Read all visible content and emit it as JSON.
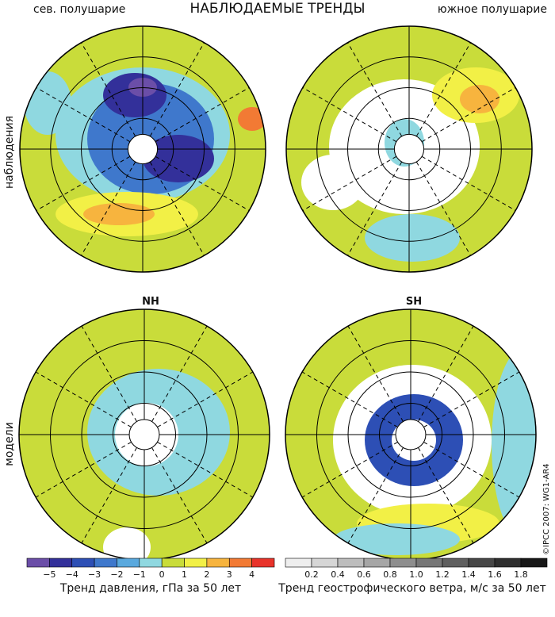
{
  "title": "НАБЛЮДАЕМЫЕ ТРЕНДЫ",
  "panel_labels": {
    "nh_obs": "сев. полушарие",
    "sh_obs": "южное полушарие",
    "nh_model": "NH",
    "sh_model": "SH"
  },
  "row_labels": [
    "наблюдения",
    "модели"
  ],
  "pressure_colorbar": {
    "label": "Тренд давления, гПа за 50 лет",
    "ticks": [
      "−5",
      "−4",
      "−3",
      "−2",
      "−1",
      "0",
      "1",
      "2",
      "3",
      "4"
    ],
    "colors": [
      "#6b4ea8",
      "#33309a",
      "#2d4fb5",
      "#3f78cc",
      "#5aa9de",
      "#8fd8e0",
      "#c9dc3a",
      "#f2f046",
      "#f7b43e",
      "#f27a34",
      "#e8332a"
    ]
  },
  "wind_colorbar": {
    "label": "Тренд геострофического ветра, м/с за 50 лет",
    "ticks": [
      "0.2",
      "0.4",
      "0.6",
      "0.8",
      "1.0",
      "1.2",
      "1.4",
      "1.6",
      "1.8"
    ],
    "colors": [
      "#eeeeee",
      "#d6d6d6",
      "#bdbdbd",
      "#a6a6a6",
      "#8e8e8e",
      "#777777",
      "#5f5f5f",
      "#474747",
      "#2f2f2f",
      "#171717"
    ]
  },
  "copyright": "©IPCC 2007: WG1-AR4"
}
